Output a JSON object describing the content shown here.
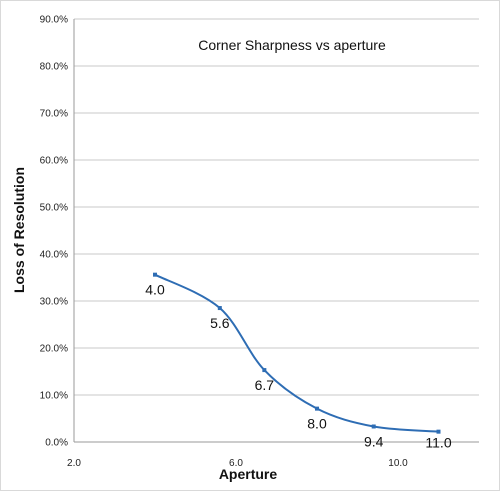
{
  "chart_data": {
    "type": "line",
    "title": "Corner Sharpness vs aperture",
    "xlabel": "Aperture",
    "ylabel": "Loss of Resolution",
    "xlim": [
      2.0,
      12.0
    ],
    "ylim": [
      0,
      0.9
    ],
    "x_ticks": [
      2.0,
      6.0,
      10.0
    ],
    "x_tick_labels": [
      "2.0",
      "6.0",
      "10.0"
    ],
    "y_ticks": [
      0,
      0.1,
      0.2,
      0.3,
      0.4,
      0.5,
      0.6,
      0.7,
      0.8,
      0.9
    ],
    "y_tick_labels": [
      "0.0%",
      "10.0%",
      "20.0%",
      "30.0%",
      "40.0%",
      "50.0%",
      "60.0%",
      "70.0%",
      "80.0%",
      "90.0%"
    ],
    "grid": "horizontal",
    "legend": "none",
    "series": [
      {
        "color": "#2e6db4",
        "x": [
          4.0,
          5.6,
          6.7,
          8.0,
          9.4,
          11.0
        ],
        "y": [
          0.356,
          0.285,
          0.153,
          0.071,
          0.033,
          0.022
        ]
      }
    ],
    "annotations": [
      "4.0",
      "5.6",
      "6.7",
      "8.0",
      "9.4",
      "11.0"
    ]
  }
}
